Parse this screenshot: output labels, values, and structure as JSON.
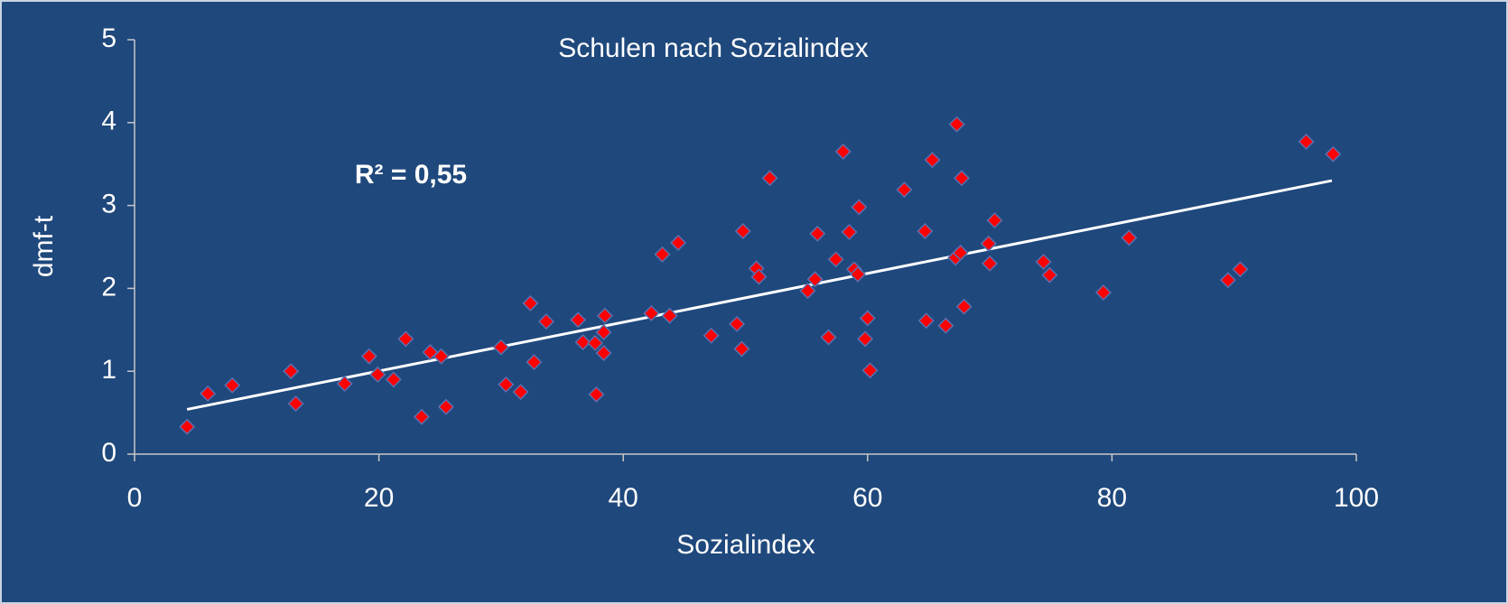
{
  "chart_data": {
    "type": "scatter",
    "title": "Schulen nach Sozialindex",
    "xlabel": "Sozialindex",
    "ylabel": "dmf-t",
    "annotation": "R² = 0,55",
    "xlim": [
      0,
      100
    ],
    "xticks": [
      0,
      20,
      40,
      60,
      80,
      100
    ],
    "ylim": [
      0,
      5
    ],
    "yticks": [
      0,
      1,
      2,
      3,
      4,
      5
    ],
    "color": "#ff0000",
    "trendline": {
      "color": "#ffffff",
      "x": [
        4.3,
        98.0
      ],
      "y": [
        0.54,
        3.3
      ]
    },
    "x": [
      4.3,
      6.0,
      8.0,
      12.8,
      13.2,
      17.2,
      19.2,
      19.9,
      21.2,
      22.2,
      23.5,
      24.2,
      25.1,
      25.5,
      30.0,
      30.4,
      31.6,
      32.4,
      32.7,
      33.7,
      36.3,
      36.7,
      37.7,
      37.8,
      38.4,
      38.4,
      38.5,
      42.3,
      43.2,
      43.8,
      44.5,
      47.2,
      49.3,
      49.7,
      49.8,
      50.9,
      51.1,
      52.0,
      55.1,
      55.7,
      55.9,
      56.8,
      57.4,
      58.0,
      58.5,
      58.9,
      59.2,
      59.3,
      59.8,
      60.0,
      60.2,
      63.0,
      64.7,
      64.8,
      65.3,
      66.4,
      67.2,
      67.3,
      67.6,
      67.7,
      67.9,
      69.9,
      70.0,
      70.4,
      74.4,
      74.9,
      79.3,
      81.4,
      89.5,
      90.5,
      95.9,
      98.1
    ],
    "values": [
      0.33,
      0.73,
      0.83,
      1.0,
      0.61,
      0.85,
      1.18,
      0.96,
      0.9,
      1.39,
      0.45,
      1.23,
      1.18,
      0.57,
      1.29,
      0.84,
      0.75,
      1.82,
      1.11,
      1.6,
      1.62,
      1.35,
      1.34,
      0.72,
      1.22,
      1.47,
      1.67,
      1.7,
      2.41,
      1.67,
      2.55,
      1.43,
      1.57,
      1.27,
      2.69,
      2.24,
      2.14,
      3.33,
      1.97,
      2.11,
      2.66,
      1.41,
      2.35,
      3.65,
      2.68,
      2.23,
      2.17,
      2.98,
      1.39,
      1.64,
      1.01,
      3.19,
      2.69,
      1.61,
      3.55,
      1.55,
      2.37,
      3.98,
      2.43,
      3.33,
      1.78,
      2.54,
      2.3,
      2.82,
      2.32,
      2.16,
      1.95,
      2.61,
      2.1,
      2.23,
      3.77,
      3.62
    ]
  }
}
